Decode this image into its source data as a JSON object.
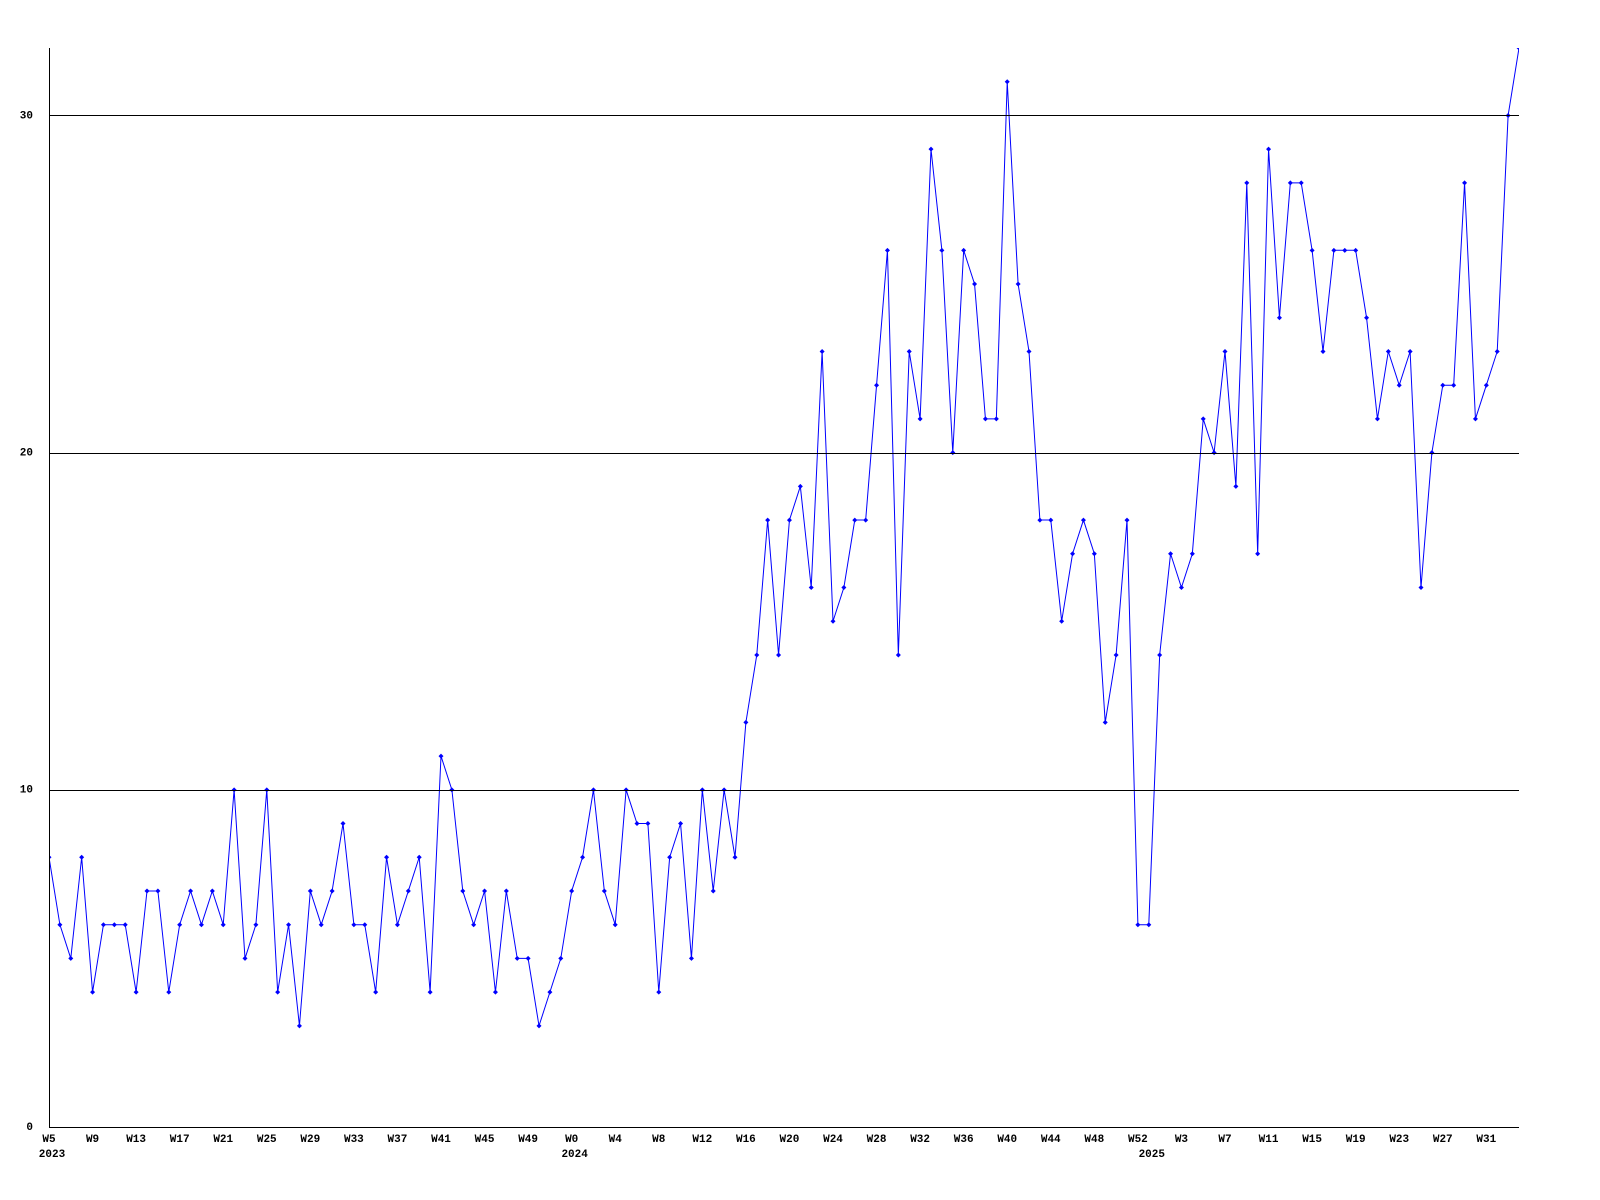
{
  "chart_data": {
    "type": "line",
    "categories": [
      "W5",
      null,
      null,
      null,
      "W9",
      null,
      null,
      null,
      "W13",
      null,
      null,
      null,
      "W17",
      null,
      null,
      null,
      "W21",
      null,
      null,
      null,
      "W25",
      null,
      null,
      null,
      "W29",
      null,
      null,
      null,
      "W33",
      null,
      null,
      null,
      "W37",
      null,
      null,
      null,
      "W41",
      null,
      null,
      null,
      "W45",
      null,
      null,
      null,
      "W49",
      null,
      null,
      null,
      "W0",
      null,
      null,
      null,
      "W4",
      null,
      null,
      null,
      "W8",
      null,
      null,
      null,
      "W12",
      null,
      null,
      null,
      "W16",
      null,
      null,
      null,
      "W20",
      null,
      null,
      null,
      "W24",
      null,
      null,
      null,
      "W28",
      null,
      null,
      null,
      "W32",
      null,
      null,
      null,
      "W36",
      null,
      null,
      null,
      "W40",
      null,
      null,
      null,
      "W44",
      null,
      null,
      null,
      "W48",
      null,
      null,
      null,
      "W52",
      null,
      null,
      null,
      "W3",
      null,
      null,
      null,
      "W7",
      null,
      null,
      null,
      "W11",
      null,
      null,
      null,
      "W15",
      null,
      null,
      null,
      "W19",
      null,
      null,
      null,
      "W23",
      null,
      null,
      null,
      "W27",
      null,
      null,
      null,
      "W31",
      null,
      null,
      null
    ],
    "year_labels": [
      "2023",
      null,
      null,
      null,
      null,
      null,
      null,
      null,
      null,
      null,
      null,
      null,
      null,
      null,
      null,
      null,
      null,
      null,
      null,
      null,
      null,
      null,
      null,
      null,
      null,
      null,
      null,
      null,
      null,
      null,
      null,
      null,
      null,
      null,
      null,
      null,
      null,
      null,
      null,
      null,
      null,
      null,
      null,
      null,
      null,
      null,
      null,
      null,
      "2024",
      null,
      null,
      null,
      null,
      null,
      null,
      null,
      null,
      null,
      null,
      null,
      null,
      null,
      null,
      null,
      null,
      null,
      null,
      null,
      null,
      null,
      null,
      null,
      null,
      null,
      null,
      null,
      null,
      null,
      null,
      null,
      null,
      null,
      null,
      null,
      null,
      null,
      null,
      null,
      null,
      null,
      null,
      null,
      null,
      null,
      null,
      null,
      null,
      null,
      null,
      null,
      null,
      "2025",
      null,
      null,
      null,
      null,
      null,
      null,
      null,
      null,
      null,
      null,
      null,
      null,
      null,
      null,
      null,
      null,
      null,
      null,
      null,
      null,
      null,
      null,
      null,
      null,
      null,
      null,
      null,
      null,
      null,
      null,
      null,
      null,
      null,
      null
    ],
    "values": [
      8,
      6,
      5,
      8,
      4,
      6,
      6,
      6,
      4,
      7,
      7,
      4,
      6,
      7,
      6,
      7,
      6,
      10,
      5,
      6,
      10,
      4,
      6,
      3,
      7,
      6,
      7,
      9,
      6,
      6,
      4,
      8,
      6,
      7,
      8,
      4,
      11,
      10,
      7,
      6,
      7,
      4,
      7,
      5,
      5,
      3,
      4,
      5,
      7,
      8,
      10,
      7,
      6,
      10,
      9,
      9,
      4,
      8,
      9,
      5,
      10,
      7,
      10,
      8,
      12,
      14,
      18,
      14,
      18,
      19,
      16,
      23,
      15,
      16,
      18,
      18,
      22,
      26,
      14,
      23,
      21,
      29,
      26,
      20,
      26,
      25,
      21,
      21,
      31,
      25,
      23,
      18,
      18,
      15,
      17,
      18,
      17,
      12,
      14,
      18,
      6,
      6,
      14,
      17,
      16,
      17,
      21,
      20,
      23,
      19,
      28,
      17,
      29,
      24,
      28,
      28,
      26,
      23,
      26,
      26,
      26,
      24,
      21,
      23,
      22,
      23,
      16,
      20,
      22,
      22,
      28,
      21,
      22,
      23,
      30,
      32
    ],
    "color": "#0000ff",
    "ylim": [
      0,
      32
    ],
    "yticks": [
      0,
      10,
      20,
      30
    ],
    "grid": true
  }
}
